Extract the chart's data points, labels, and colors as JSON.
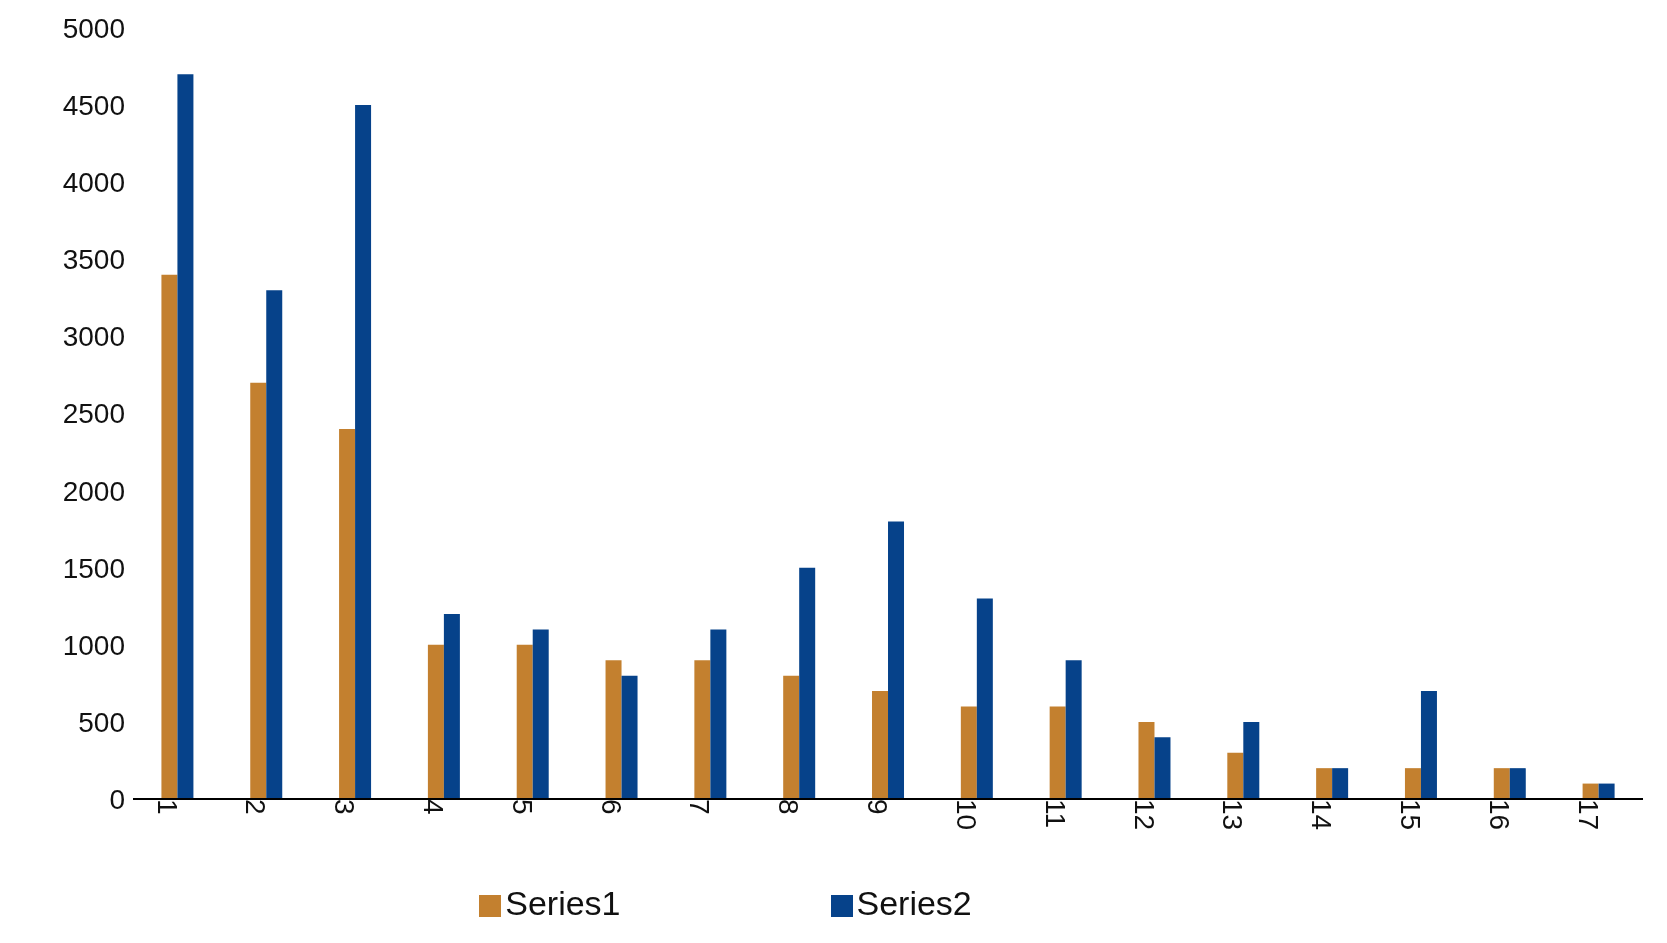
{
  "chart_data": {
    "type": "bar",
    "categories": [
      "1",
      "2",
      "3",
      "4",
      "5",
      "6",
      "7",
      "8",
      "9",
      "10",
      "11",
      "12",
      "13",
      "14",
      "15",
      "16",
      "17"
    ],
    "series": [
      {
        "name": "Series1",
        "color": "#c3802f",
        "values": [
          3400,
          2700,
          2400,
          1000,
          1000,
          900,
          900,
          800,
          700,
          600,
          600,
          500,
          300,
          200,
          200,
          200,
          100
        ]
      },
      {
        "name": "Series2",
        "color": "#06428a",
        "values": [
          4700,
          3300,
          4500,
          1200,
          1100,
          800,
          1100,
          1500,
          1800,
          1300,
          900,
          400,
          500,
          200,
          700,
          200,
          100
        ]
      }
    ],
    "ylim": [
      0,
      5000
    ],
    "yticks": [
      0,
      500,
      1000,
      1500,
      2000,
      2500,
      3000,
      3500,
      4000,
      4500,
      5000
    ],
    "grid": false,
    "legend": "bottom"
  }
}
